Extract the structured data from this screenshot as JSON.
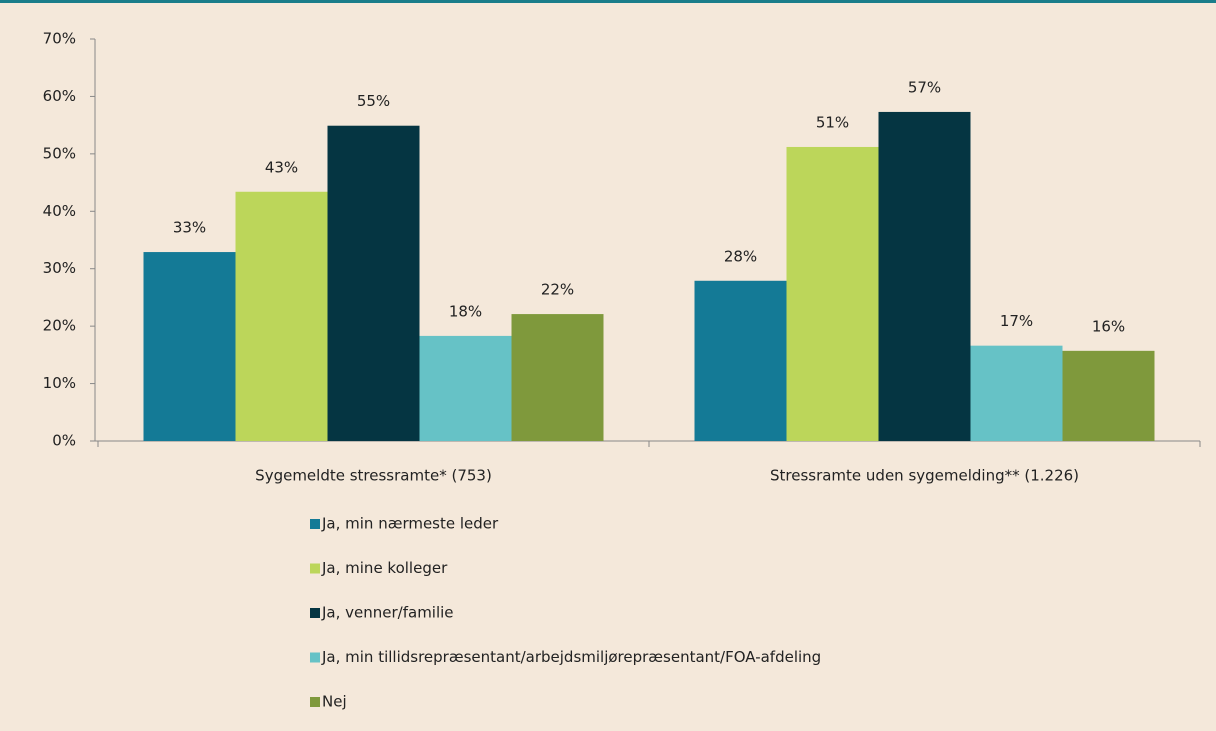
{
  "chart_data": {
    "type": "bar",
    "categories": [
      "Sygemeldte stressramte* (753)",
      "Stressramte uden sygemelding** (1.226)"
    ],
    "series": [
      {
        "name": "Ja, min nærmeste leder",
        "color": "#147a96",
        "values": [
          32.9,
          27.9
        ],
        "value_labels": [
          "33%",
          "28%"
        ]
      },
      {
        "name": "Ja, mine kolleger",
        "color": "#bcd65a",
        "values": [
          43.4,
          51.2
        ],
        "value_labels": [
          "43%",
          "51%"
        ]
      },
      {
        "name": "Ja, venner/familie",
        "color": "#053542",
        "values": [
          54.9,
          57.3
        ],
        "value_labels": [
          "55%",
          "57%"
        ]
      },
      {
        "name": "Ja, min tillidsrepræsentant/arbejdsmiljørepræsentant/FOA-afdeling",
        "color": "#66c2c6",
        "values": [
          18.3,
          16.6
        ],
        "value_labels": [
          "18%",
          "17%"
        ]
      },
      {
        "name": "Nej",
        "color": "#7f993c",
        "values": [
          22.1,
          15.7
        ],
        "value_labels": [
          "22%",
          "16%"
        ]
      }
    ],
    "ylim": [
      0,
      70
    ],
    "yticks": [
      {
        "value": 0,
        "label": "0%"
      },
      {
        "value": 10,
        "label": "10%"
      },
      {
        "value": 20,
        "label": "20%"
      },
      {
        "value": 30,
        "label": "30%"
      },
      {
        "value": 40,
        "label": "40%"
      },
      {
        "value": 50,
        "label": "50%"
      },
      {
        "value": 60,
        "label": "60%"
      },
      {
        "value": 70,
        "label": "70%"
      }
    ],
    "legend": "bottom"
  }
}
